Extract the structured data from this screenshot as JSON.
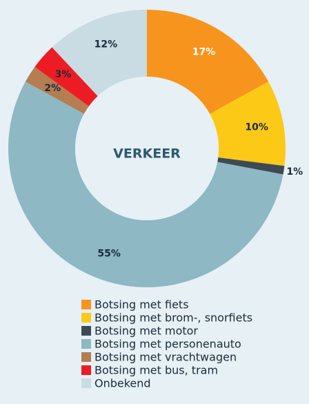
{
  "chart_data": {
    "type": "donut",
    "center_label": "VERKEER",
    "categories": [
      "Botsing met fiets",
      "Botsing met brom-, snorfiets",
      "Botsing met motor",
      "Botsing met personenauto",
      "Botsing met vrachtwagen",
      "Botsing met bus, tram",
      "Onbekend"
    ],
    "values": [
      17,
      10,
      1,
      55,
      2,
      3,
      12
    ],
    "value_labels": [
      "17%",
      "10%",
      "1%",
      "55%",
      "2%",
      "3%",
      "12%"
    ],
    "colors": [
      "#f7941d",
      "#fcc917",
      "#3d4a55",
      "#8db8c4",
      "#b57d50",
      "#ed1c24",
      "#c9dce3"
    ]
  }
}
